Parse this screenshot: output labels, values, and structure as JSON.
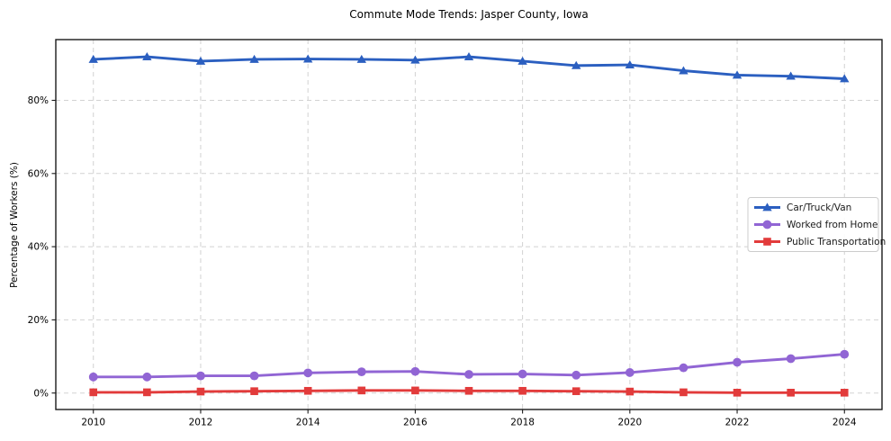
{
  "chart_data": {
    "type": "line",
    "title": "Commute Mode Trends: Jasper County, Iowa",
    "xlabel": "",
    "ylabel": "Percentage of Workers (%)",
    "x": [
      2010,
      2011,
      2012,
      2013,
      2014,
      2015,
      2016,
      2017,
      2018,
      2019,
      2020,
      2021,
      2022,
      2023,
      2024
    ],
    "x_tick_labels": [
      "2010",
      "2012",
      "2014",
      "2016",
      "2018",
      "2020",
      "2022",
      "2024"
    ],
    "y_ticks": [
      0,
      20,
      40,
      60,
      80
    ],
    "y_tick_labels": [
      "0%",
      "20%",
      "40%",
      "60%",
      "80%"
    ],
    "xlim": [
      2009.3,
      2024.7
    ],
    "ylim": [
      -4.5,
      96.6
    ],
    "grid": true,
    "grid_style": "dashed",
    "legend_position": "center right",
    "series": [
      {
        "name": "Car/Truck/Van",
        "color": "#2b5fc0",
        "marker": "triangle",
        "values": [
          91.2,
          91.9,
          90.7,
          91.2,
          91.3,
          91.2,
          91.0,
          91.9,
          90.7,
          89.5,
          89.7,
          88.1,
          86.9,
          86.6,
          85.9
        ]
      },
      {
        "name": "Worked from Home",
        "color": "#9165d4",
        "marker": "circle",
        "values": [
          4.4,
          4.4,
          4.7,
          4.7,
          5.5,
          5.8,
          5.9,
          5.1,
          5.2,
          4.9,
          5.6,
          6.9,
          8.4,
          9.4,
          10.6
        ]
      },
      {
        "name": "Public Transportation",
        "color": "#e23b3b",
        "marker": "square",
        "values": [
          0.2,
          0.2,
          0.4,
          0.5,
          0.6,
          0.7,
          0.7,
          0.6,
          0.6,
          0.5,
          0.4,
          0.2,
          0.1,
          0.1,
          0.1
        ]
      }
    ],
    "colors": {
      "spine": "#1a1a1a",
      "grid": "#d2d2d2",
      "tick_label": "#000000",
      "legend_border": "#cccccc",
      "legend_background": "#ffffff"
    }
  }
}
